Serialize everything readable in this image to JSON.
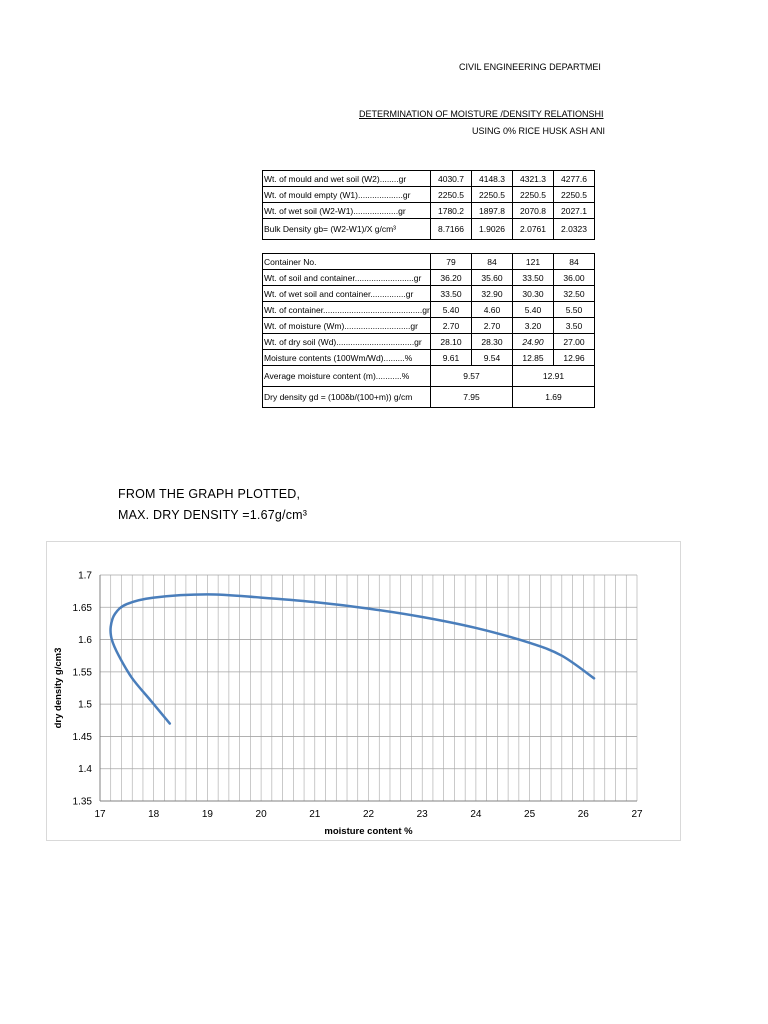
{
  "header": {
    "department": "CIVIL ENGINEERING DEPARTMEI",
    "determination": "DETERMINATION OF MOISTURE /DENSITY RELATIONSHI",
    "using": "USING 0% RICE HUSK ASH ANI"
  },
  "table1": {
    "rows": [
      {
        "label": "Wt. of mould and wet soil  (W2)........gr",
        "values": [
          "4030.7",
          "4148.3",
          "4321.3",
          "4277.6"
        ]
      },
      {
        "label": "Wt. of mould empty  (W1)...................gr",
        "values": [
          "2250.5",
          "2250.5",
          "2250.5",
          "2250.5"
        ]
      },
      {
        "label": "Wt. of wet soil  (W2-W1)...................gr",
        "values": [
          "1780.2",
          "1897.8",
          "2070.8",
          "2027.1"
        ]
      },
      {
        "label": "Bulk Density   gb= (W2-W1)/X     g/cm³",
        "values": [
          "8.7166",
          "1.9026",
          "2.0761",
          "2.0323"
        ]
      }
    ]
  },
  "table2": {
    "rows": [
      {
        "label": "Container No.",
        "values": [
          "79",
          "84",
          "121",
          "84"
        ]
      },
      {
        "label": "Wt. of soil and container.........................gr",
        "values": [
          "36.20",
          "35.60",
          "33.50",
          "36.00"
        ]
      },
      {
        "label": "Wt. of wet soil and container...............gr",
        "values": [
          "33.50",
          "32.90",
          "30.30",
          "32.50"
        ]
      },
      {
        "label": "Wt. of container..........................................gr",
        "values": [
          "5.40",
          "4.60",
          "5.40",
          "5.50"
        ]
      },
      {
        "label": "Wt. of moisture (Wm)............................gr",
        "values": [
          "2.70",
          "2.70",
          "3.20",
          "3.50"
        ]
      },
      {
        "label": "Wt. of dry soil (Wd).................................gr",
        "values": [
          "28.10",
          "28.30",
          "24.90",
          "27.00"
        ]
      },
      {
        "label": "Moisture contents (100Wm/Wd).........%",
        "values": [
          "9.61",
          "9.54",
          "12.85",
          "12.96"
        ]
      }
    ],
    "average": {
      "label": "Average moisture content  (m)...........%",
      "values": [
        "9.57",
        "12.91"
      ]
    },
    "dry": {
      "label": "Dry density gd = (100δb/(100+m))  g/cm",
      "values": [
        "7.95",
        "1.69"
      ]
    }
  },
  "notes": {
    "line1": "FROM THE GRAPH PLOTTED,",
    "line2": "MAX. DRY DENSITY =1.67g/cm³"
  },
  "chart_data": {
    "type": "line",
    "title": "",
    "xlabel": "moisture content %",
    "ylabel": "dry density g/cm3",
    "xlim": [
      17,
      27
    ],
    "ylim": [
      1.35,
      1.7
    ],
    "xticks": [
      "17",
      "18",
      "19",
      "20",
      "21",
      "22",
      "23",
      "24",
      "25",
      "26",
      "27"
    ],
    "yticks": [
      "1.35",
      "1.4",
      "1.45",
      "1.5",
      "1.55",
      "1.6",
      "1.65",
      "1.7"
    ],
    "grid": true,
    "legend": "none",
    "line_color": "#4a7ebb",
    "series": [
      {
        "x": [
          18.3,
          17.95,
          17.6,
          17.35,
          17.22,
          17.2,
          17.28,
          17.5,
          18.0,
          19.0,
          20.0,
          21.0,
          22.0,
          23.0,
          24.0,
          25.0,
          25.6,
          26.2
        ],
        "y": [
          1.47,
          1.505,
          1.54,
          1.575,
          1.6,
          1.62,
          1.64,
          1.655,
          1.665,
          1.67,
          1.665,
          1.658,
          1.648,
          1.635,
          1.618,
          1.595,
          1.575,
          1.54
        ]
      }
    ]
  }
}
